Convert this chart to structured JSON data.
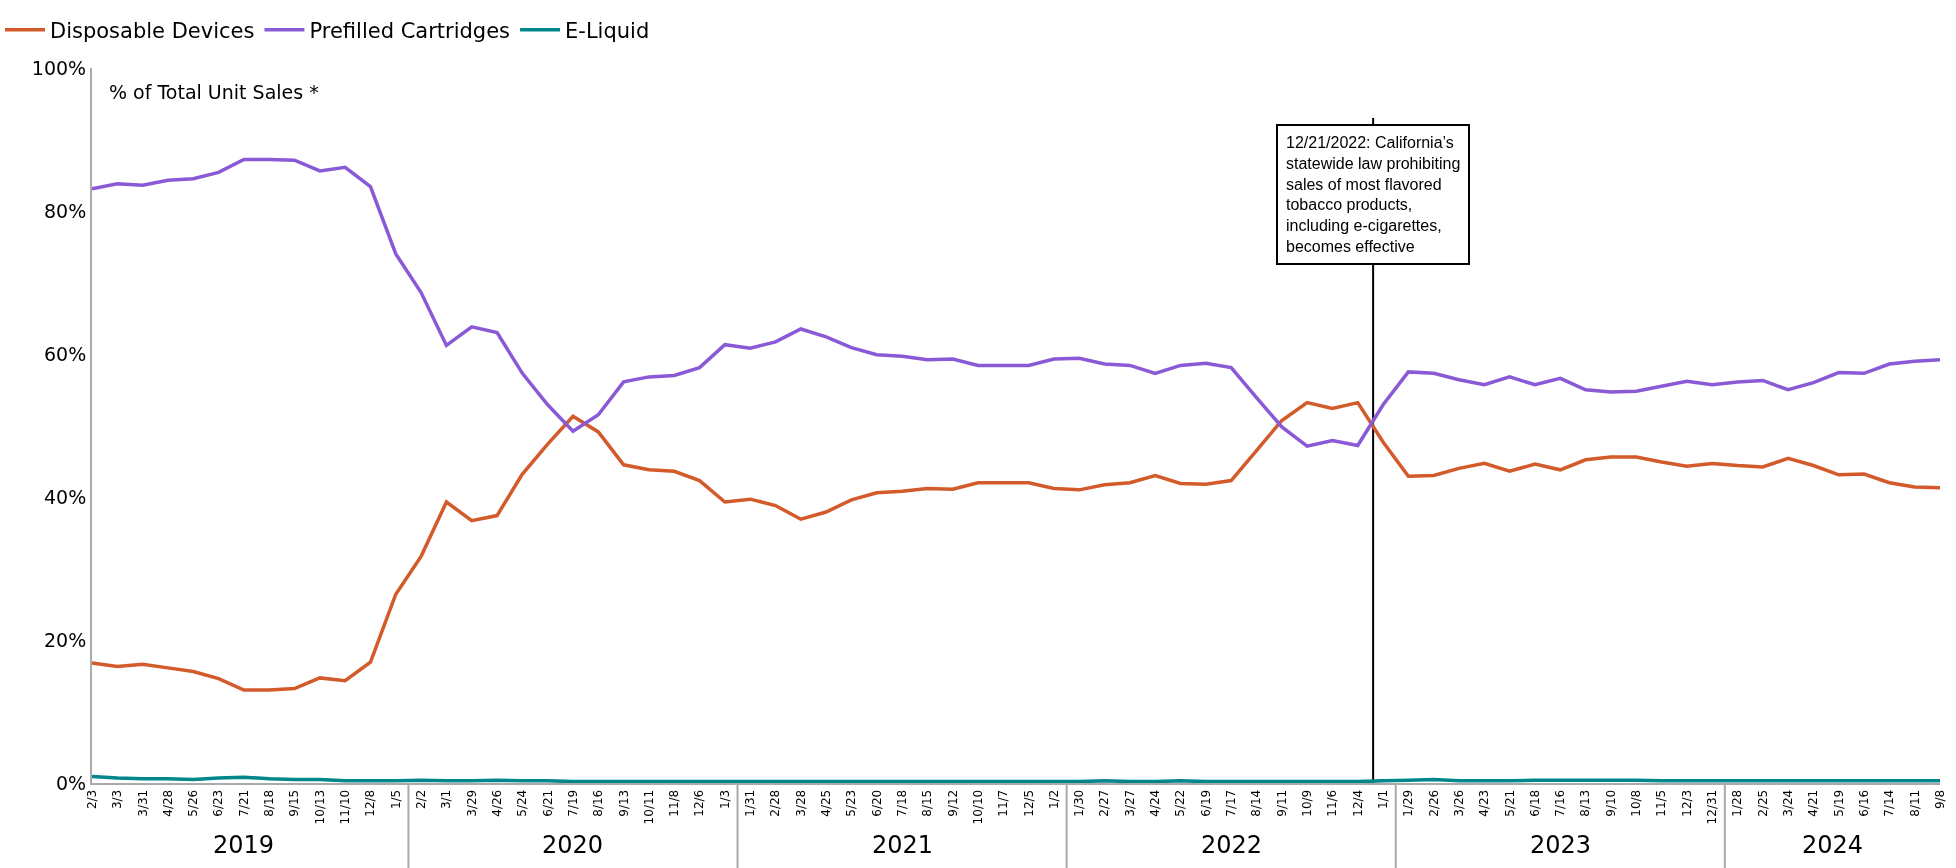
{
  "chart_data": {
    "type": "line",
    "ylabel": "% of Total Unit Sales *",
    "x": [
      "2019-02-03",
      "2019-03-03",
      "2019-03-31",
      "2019-04-28",
      "2019-05-26",
      "2019-06-23",
      "2019-07-21",
      "2019-08-18",
      "2019-09-15",
      "2019-10-13",
      "2019-11-10",
      "2019-12-08",
      "2020-01-05",
      "2020-02-02",
      "2020-03-01",
      "2020-03-29",
      "2020-04-26",
      "2020-05-24",
      "2020-06-21",
      "2020-07-19",
      "2020-08-16",
      "2020-09-13",
      "2020-10-11",
      "2020-11-08",
      "2020-12-06",
      "2021-01-03",
      "2021-01-31",
      "2021-02-28",
      "2021-03-28",
      "2021-04-25",
      "2021-05-23",
      "2021-06-20",
      "2021-07-18",
      "2021-08-15",
      "2021-09-12",
      "2021-10-10",
      "2021-11-07",
      "2021-12-05",
      "2022-01-02",
      "2022-01-30",
      "2022-02-27",
      "2022-03-27",
      "2022-04-24",
      "2022-05-22",
      "2022-06-19",
      "2022-07-17",
      "2022-08-14",
      "2022-09-11",
      "2022-10-09",
      "2022-11-06",
      "2022-12-04",
      "2023-01-01",
      "2023-01-29",
      "2023-02-26",
      "2023-03-26",
      "2023-04-23",
      "2023-05-21",
      "2023-06-18",
      "2023-07-16",
      "2023-08-13",
      "2023-09-10",
      "2023-10-08",
      "2023-11-05",
      "2023-12-03",
      "2023-12-31",
      "2024-01-28",
      "2024-02-25",
      "2024-03-24",
      "2024-04-21",
      "2024-05-19",
      "2024-06-16",
      "2024-07-14",
      "2024-08-11",
      "2024-09-08"
    ],
    "series": [
      {
        "name": "Disposable Devices",
        "color": "#d35a2a",
        "values": [
          16.8,
          16.3,
          16.6,
          16.1,
          15.6,
          14.6,
          13.0,
          13.0,
          13.2,
          14.7,
          14.3,
          16.9,
          26.4,
          31.7,
          39.3,
          36.7,
          37.4,
          43.2,
          47.4,
          51.3,
          49.1,
          44.5,
          43.8,
          43.6,
          42.3,
          39.3,
          39.7,
          38.8,
          36.9,
          37.9,
          39.6,
          40.6,
          40.8,
          41.2,
          41.1,
          42.0,
          42.0,
          42.0,
          41.2,
          41.0,
          41.7,
          42.0,
          43.0,
          41.9,
          41.8,
          42.3,
          46.5,
          50.7,
          53.2,
          52.4,
          53.2,
          47.7,
          42.9,
          43.0,
          44.0,
          44.7,
          43.6,
          44.6,
          43.8,
          45.2,
          45.6,
          45.6,
          44.9,
          44.3,
          44.7,
          44.4,
          44.2,
          45.4,
          44.4,
          43.1,
          43.2,
          42.0,
          41.4,
          41.3
        ]
      },
      {
        "name": "Prefilled Cartridges",
        "color": "#8a5ad6",
        "values": [
          83.1,
          83.8,
          83.6,
          84.3,
          84.5,
          85.4,
          87.2,
          87.2,
          87.1,
          85.6,
          86.1,
          83.4,
          74.0,
          68.6,
          61.2,
          63.8,
          63.0,
          57.3,
          52.9,
          49.2,
          51.5,
          56.1,
          56.8,
          57.0,
          58.1,
          61.3,
          60.8,
          61.7,
          63.5,
          62.4,
          60.9,
          59.9,
          59.7,
          59.2,
          59.3,
          58.4,
          58.4,
          58.4,
          59.3,
          59.4,
          58.6,
          58.4,
          57.3,
          58.4,
          58.7,
          58.1,
          53.9,
          49.8,
          47.1,
          47.9,
          47.2,
          52.9,
          57.5,
          57.3,
          56.4,
          55.7,
          56.8,
          55.7,
          56.6,
          55.0,
          54.7,
          54.8,
          55.5,
          56.2,
          55.7,
          56.1,
          56.3,
          55.0,
          56.0,
          57.4,
          57.3,
          58.6,
          59.0,
          59.2
        ]
      },
      {
        "name": "E-Liquid",
        "color": "#00868b",
        "values": [
          0.9,
          0.7,
          0.6,
          0.6,
          0.5,
          0.7,
          0.8,
          0.6,
          0.5,
          0.5,
          0.3,
          0.3,
          0.3,
          0.4,
          0.3,
          0.3,
          0.4,
          0.3,
          0.3,
          0.2,
          0.2,
          0.2,
          0.2,
          0.2,
          0.2,
          0.2,
          0.2,
          0.2,
          0.2,
          0.2,
          0.2,
          0.2,
          0.2,
          0.2,
          0.2,
          0.2,
          0.2,
          0.2,
          0.2,
          0.2,
          0.3,
          0.2,
          0.2,
          0.3,
          0.2,
          0.2,
          0.2,
          0.2,
          0.2,
          0.2,
          0.2,
          0.3,
          0.4,
          0.5,
          0.3,
          0.3,
          0.3,
          0.4,
          0.4,
          0.4,
          0.4,
          0.4,
          0.3,
          0.3,
          0.3,
          0.3,
          0.3,
          0.3,
          0.3,
          0.3,
          0.3,
          0.3,
          0.3,
          0.3
        ]
      }
    ],
    "xlim": [
      "2019-02-03",
      "2024-09-08"
    ],
    "xticks": [
      {
        "value": "2019-02-03",
        "label": "2/3"
      },
      {
        "value": "2019-03-03",
        "label": "3/3"
      },
      {
        "value": "2019-03-31",
        "label": "3/31"
      },
      {
        "value": "2019-04-28",
        "label": "4/28"
      },
      {
        "value": "2019-05-26",
        "label": "5/26"
      },
      {
        "value": "2019-06-23",
        "label": "6/23"
      },
      {
        "value": "2019-07-21",
        "label": "7/21"
      },
      {
        "value": "2019-08-18",
        "label": "8/18"
      },
      {
        "value": "2019-09-15",
        "label": "9/15"
      },
      {
        "value": "2019-10-13",
        "label": "10/13"
      },
      {
        "value": "2019-11-10",
        "label": "11/10"
      },
      {
        "value": "2019-12-08",
        "label": "12/8"
      },
      {
        "value": "2020-01-05",
        "label": "1/5"
      },
      {
        "value": "2020-02-02",
        "label": "2/2"
      },
      {
        "value": "2020-03-01",
        "label": "3/1"
      },
      {
        "value": "2020-03-29",
        "label": "3/29"
      },
      {
        "value": "2020-04-26",
        "label": "4/26"
      },
      {
        "value": "2020-05-24",
        "label": "5/24"
      },
      {
        "value": "2020-06-21",
        "label": "6/21"
      },
      {
        "value": "2020-07-19",
        "label": "7/19"
      },
      {
        "value": "2020-08-16",
        "label": "8/16"
      },
      {
        "value": "2020-09-13",
        "label": "9/13"
      },
      {
        "value": "2020-10-11",
        "label": "10/11"
      },
      {
        "value": "2020-11-08",
        "label": "11/8"
      },
      {
        "value": "2020-12-06",
        "label": "12/6"
      },
      {
        "value": "2021-01-03",
        "label": "1/3"
      },
      {
        "value": "2021-01-31",
        "label": "1/31"
      },
      {
        "value": "2021-02-28",
        "label": "2/28"
      },
      {
        "value": "2021-03-28",
        "label": "3/28"
      },
      {
        "value": "2021-04-25",
        "label": "4/25"
      },
      {
        "value": "2021-05-23",
        "label": "5/23"
      },
      {
        "value": "2021-06-20",
        "label": "6/20"
      },
      {
        "value": "2021-07-18",
        "label": "7/18"
      },
      {
        "value": "2021-08-15",
        "label": "8/15"
      },
      {
        "value": "2021-09-12",
        "label": "9/12"
      },
      {
        "value": "2021-10-10",
        "label": "10/10"
      },
      {
        "value": "2021-11-07",
        "label": "11/7"
      },
      {
        "value": "2021-12-05",
        "label": "12/5"
      },
      {
        "value": "2022-01-02",
        "label": "1/2"
      },
      {
        "value": "2022-01-30",
        "label": "1/30"
      },
      {
        "value": "2022-02-27",
        "label": "2/27"
      },
      {
        "value": "2022-03-27",
        "label": "3/27"
      },
      {
        "value": "2022-04-24",
        "label": "4/24"
      },
      {
        "value": "2022-05-22",
        "label": "5/22"
      },
      {
        "value": "2022-06-19",
        "label": "6/19"
      },
      {
        "value": "2022-07-17",
        "label": "7/17"
      },
      {
        "value": "2022-08-14",
        "label": "8/14"
      },
      {
        "value": "2022-09-11",
        "label": "9/11"
      },
      {
        "value": "2022-10-09",
        "label": "10/9"
      },
      {
        "value": "2022-11-06",
        "label": "11/6"
      },
      {
        "value": "2022-12-04",
        "label": "12/4"
      },
      {
        "value": "2023-01-01",
        "label": "1/1"
      },
      {
        "value": "2023-01-29",
        "label": "1/29"
      },
      {
        "value": "2023-02-26",
        "label": "2/26"
      },
      {
        "value": "2023-03-26",
        "label": "3/26"
      },
      {
        "value": "2023-04-23",
        "label": "4/23"
      },
      {
        "value": "2023-05-21",
        "label": "5/21"
      },
      {
        "value": "2023-06-18",
        "label": "6/18"
      },
      {
        "value": "2023-07-16",
        "label": "7/16"
      },
      {
        "value": "2023-08-13",
        "label": "8/13"
      },
      {
        "value": "2023-09-10",
        "label": "9/10"
      },
      {
        "value": "2023-10-08",
        "label": "10/8"
      },
      {
        "value": "2023-11-05",
        "label": "11/5"
      },
      {
        "value": "2023-12-03",
        "label": "12/3"
      },
      {
        "value": "2023-12-31",
        "label": "12/31"
      },
      {
        "value": "2024-01-28",
        "label": "1/28"
      },
      {
        "value": "2024-02-25",
        "label": "2/25"
      },
      {
        "value": "2024-03-24",
        "label": "3/24"
      },
      {
        "value": "2024-04-21",
        "label": "4/21"
      },
      {
        "value": "2024-05-19",
        "label": "5/19"
      },
      {
        "value": "2024-06-16",
        "label": "6/16"
      },
      {
        "value": "2024-07-14",
        "label": "7/14"
      },
      {
        "value": "2024-08-11",
        "label": "8/11"
      },
      {
        "value": "2024-09-08",
        "label": "9/8"
      }
    ],
    "ylim": [
      0,
      100
    ],
    "yticks": [
      {
        "value": 0,
        "label": "0%"
      },
      {
        "value": 20,
        "label": "20%"
      },
      {
        "value": 40,
        "label": "40%"
      },
      {
        "value": 60,
        "label": "60%"
      },
      {
        "value": 80,
        "label": "80%"
      },
      {
        "value": 100,
        "label": "100%"
      }
    ],
    "ref_lines": [
      {
        "axis": "x",
        "value": "2022-12-21",
        "label": "12/21/2022: California’s statewide law prohibiting sales of most flavored tobacco products, including e-cigarettes, becomes effective",
        "color": "#000000"
      }
    ],
    "annotations": [
      "2019",
      "2020",
      "2021",
      "2022",
      "2023",
      "2024"
    ],
    "legend": "top left",
    "marker": "none",
    "line_style": "solid"
  }
}
